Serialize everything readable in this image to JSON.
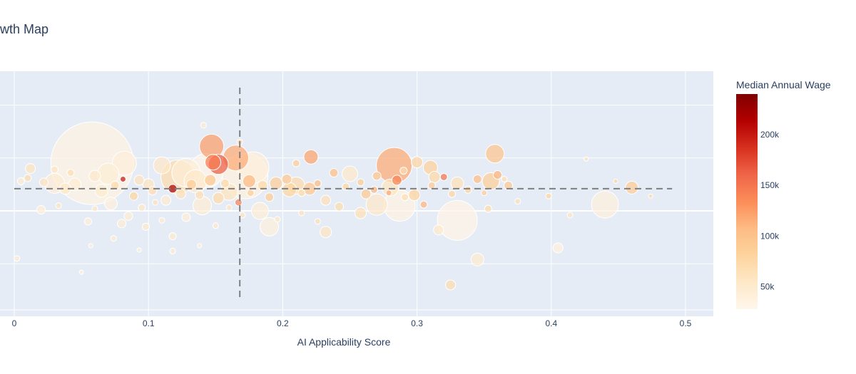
{
  "chart_data": {
    "type": "scatter",
    "title": "owth Map",
    "xlabel": "AI Applicability Score",
    "ylabel": "",
    "x_ticks": [
      "0",
      "0.1",
      "0.2",
      "0.3",
      "0.4",
      "0.5"
    ],
    "xlim": [
      -0.01,
      0.52
    ],
    "color_scale": {
      "title": "Median Annual Wage",
      "tick_labels": [
        "50k",
        "100k",
        "150k",
        "200k"
      ],
      "tick_values": [
        50000,
        100000,
        150000,
        200000
      ],
      "range": [
        28000,
        240000
      ],
      "colors": [
        "#fff7ec",
        "#fee8c8",
        "#fdd49e",
        "#fdbb84",
        "#fc8d59",
        "#ef6548",
        "#d7301f",
        "#b30000",
        "#7f0000"
      ]
    },
    "reference_lines": {
      "x_mean": 0.168,
      "y_mean": 2.1
    },
    "grid": true,
    "legend": "colorbar-right",
    "points": [
      {
        "x": 0.058,
        "y": 4.5,
        "size": 58,
        "wage": 36000
      },
      {
        "x": 0.143,
        "y": 3.8,
        "size": 24,
        "wage": 34000
      },
      {
        "x": 0.147,
        "y": 6.1,
        "size": 17,
        "wage": 125000
      },
      {
        "x": 0.165,
        "y": 5.0,
        "size": 18,
        "wage": 118000
      },
      {
        "x": 0.152,
        "y": 4.4,
        "size": 14,
        "wage": 165000
      },
      {
        "x": 0.148,
        "y": 4.6,
        "size": 11,
        "wage": 145000
      },
      {
        "x": 0.172,
        "y": 3.3,
        "size": 32,
        "wage": 38000
      },
      {
        "x": 0.178,
        "y": 4.1,
        "size": 22,
        "wage": 42000
      },
      {
        "x": 0.122,
        "y": 3.2,
        "size": 24,
        "wage": 72000
      },
      {
        "x": 0.128,
        "y": 3.6,
        "size": 20,
        "wage": 45000
      },
      {
        "x": 0.135,
        "y": 2.8,
        "size": 16,
        "wage": 52000
      },
      {
        "x": 0.283,
        "y": 4.3,
        "size": 25,
        "wage": 118000
      },
      {
        "x": 0.287,
        "y": 0.5,
        "size": 22,
        "wage": 36000
      },
      {
        "x": 0.33,
        "y": -0.9,
        "size": 28,
        "wage": 33000
      },
      {
        "x": 0.358,
        "y": 5.4,
        "size": 13,
        "wage": 98000
      },
      {
        "x": 0.221,
        "y": 5.1,
        "size": 10,
        "wage": 122000
      },
      {
        "x": 0.44,
        "y": 0.6,
        "size": 19,
        "wage": 40000
      },
      {
        "x": 0.355,
        "y": 2.8,
        "size": 12,
        "wage": 88000
      },
      {
        "x": 0.082,
        "y": 4.5,
        "size": 17,
        "wage": 42000
      },
      {
        "x": 0.07,
        "y": 3.5,
        "size": 15,
        "wage": 44000
      },
      {
        "x": 0.03,
        "y": 2.6,
        "size": 14,
        "wage": 47000
      },
      {
        "x": 0.11,
        "y": 4.3,
        "size": 12,
        "wage": 55000
      },
      {
        "x": 0.19,
        "y": -1.5,
        "size": 13,
        "wage": 40000
      },
      {
        "x": 0.31,
        "y": 4.1,
        "size": 10,
        "wage": 84000
      },
      {
        "x": 0.3,
        "y": 4.6,
        "size": 8,
        "wage": 78000
      },
      {
        "x": 0.46,
        "y": 2.2,
        "size": 9,
        "wage": 90000
      },
      {
        "x": 0.345,
        "y": -4.6,
        "size": 9,
        "wage": 50000
      },
      {
        "x": 0.405,
        "y": -3.5,
        "size": 7,
        "wage": 38000
      },
      {
        "x": 0.325,
        "y": -7.0,
        "size": 7,
        "wage": 70000
      },
      {
        "x": 0.25,
        "y": 3.5,
        "size": 11,
        "wage": 52000
      },
      {
        "x": 0.28,
        "y": 2.2,
        "size": 12,
        "wage": 60000
      },
      {
        "x": 0.27,
        "y": 0.6,
        "size": 15,
        "wage": 55000
      },
      {
        "x": 0.33,
        "y": 2.6,
        "size": 9,
        "wage": 65000
      },
      {
        "x": 0.21,
        "y": 2.4,
        "size": 12,
        "wage": 72000
      },
      {
        "x": 0.205,
        "y": 2.0,
        "size": 10,
        "wage": 80000
      },
      {
        "x": 0.16,
        "y": 1.8,
        "size": 12,
        "wage": 60000
      },
      {
        "x": 0.14,
        "y": 0.5,
        "size": 13,
        "wage": 46000
      },
      {
        "x": 0.183,
        "y": 0.0,
        "size": 12,
        "wage": 44000
      },
      {
        "x": 0.232,
        "y": -2.0,
        "size": 8,
        "wage": 58000
      },
      {
        "x": 0.258,
        "y": -0.2,
        "size": 8,
        "wage": 65000
      },
      {
        "x": 0.316,
        "y": -1.8,
        "size": 7,
        "wage": 52000
      },
      {
        "x": 0.012,
        "y": 4.0,
        "size": 7,
        "wage": 60000
      },
      {
        "x": 0.045,
        "y": 2.5,
        "size": 9,
        "wage": 46000
      },
      {
        "x": 0.22,
        "y": 2.1,
        "size": 9,
        "wage": 95000
      },
      {
        "x": 0.285,
        "y": 2.9,
        "size": 7,
        "wage": 140000
      },
      {
        "x": 0.298,
        "y": 1.5,
        "size": 8,
        "wage": 82000
      },
      {
        "x": 0.313,
        "y": 3.2,
        "size": 8,
        "wage": 76000
      },
      {
        "x": 0.368,
        "y": 2.4,
        "size": 6,
        "wage": 94000
      },
      {
        "x": 0.345,
        "y": 3.0,
        "size": 6,
        "wage": 105000
      },
      {
        "x": 0.32,
        "y": 3.2,
        "size": 5,
        "wage": 150000
      },
      {
        "x": 0.195,
        "y": 2.6,
        "size": 9,
        "wage": 86000
      },
      {
        "x": 0.175,
        "y": 2.8,
        "size": 9,
        "wage": 110000
      },
      {
        "x": 0.185,
        "y": 2.4,
        "size": 7,
        "wage": 75000
      },
      {
        "x": 0.1,
        "y": 2.5,
        "size": 8,
        "wage": 58000
      },
      {
        "x": 0.093,
        "y": 2.9,
        "size": 7,
        "wage": 62000
      },
      {
        "x": 0.081,
        "y": 3.0,
        "size": 4,
        "wage": 200000
      },
      {
        "x": 0.118,
        "y": 2.1,
        "size": 6,
        "wage": 220000
      },
      {
        "x": 0.065,
        "y": 1.9,
        "size": 9,
        "wage": 50000
      },
      {
        "x": 0.038,
        "y": 2.1,
        "size": 8,
        "wage": 54000
      },
      {
        "x": 0.022,
        "y": 2.7,
        "size": 6,
        "wage": 62000
      },
      {
        "x": 0.005,
        "y": 2.8,
        "size": 5,
        "wage": 48000
      },
      {
        "x": 0.072,
        "y": 0.7,
        "size": 9,
        "wage": 40000
      },
      {
        "x": 0.085,
        "y": -0.5,
        "size": 6,
        "wage": 46000
      },
      {
        "x": 0.055,
        "y": -1.0,
        "size": 5,
        "wage": 44000
      },
      {
        "x": 0.02,
        "y": 0.1,
        "size": 6,
        "wage": 43000
      },
      {
        "x": 0.113,
        "y": 1.0,
        "size": 7,
        "wage": 48000
      },
      {
        "x": 0.128,
        "y": -0.6,
        "size": 6,
        "wage": 44000
      },
      {
        "x": 0.232,
        "y": 1.0,
        "size": 7,
        "wage": 64000
      },
      {
        "x": 0.262,
        "y": 1.6,
        "size": 7,
        "wage": 92000
      },
      {
        "x": 0.242,
        "y": 0.4,
        "size": 6,
        "wage": 70000
      },
      {
        "x": 0.305,
        "y": 0.6,
        "size": 5,
        "wage": 110000
      },
      {
        "x": 0.353,
        "y": 0.2,
        "size": 5,
        "wage": 72000
      },
      {
        "x": 0.375,
        "y": 0.9,
        "size": 4,
        "wage": 66000
      },
      {
        "x": 0.414,
        "y": -0.4,
        "size": 4,
        "wage": 58000
      },
      {
        "x": 0.398,
        "y": 1.4,
        "size": 4,
        "wage": 80000
      },
      {
        "x": 0.152,
        "y": 1.2,
        "size": 8,
        "wage": 74000
      },
      {
        "x": 0.167,
        "y": 0.8,
        "size": 5,
        "wage": 140000
      },
      {
        "x": 0.098,
        "y": -1.5,
        "size": 5,
        "wage": 52000
      },
      {
        "x": 0.118,
        "y": -2.4,
        "size": 5,
        "wage": 50000
      },
      {
        "x": 0.08,
        "y": -1.2,
        "size": 6,
        "wage": 46000
      },
      {
        "x": 0.002,
        "y": -4.5,
        "size": 4,
        "wage": 45000
      },
      {
        "x": 0.05,
        "y": -5.8,
        "size": 3,
        "wage": 40000
      },
      {
        "x": 0.141,
        "y": 8.1,
        "size": 4,
        "wage": 50000
      },
      {
        "x": 0.168,
        "y": 6.5,
        "size": 4,
        "wage": 70000
      },
      {
        "x": 0.21,
        "y": 4.5,
        "size": 5,
        "wage": 86000
      },
      {
        "x": 0.203,
        "y": 3.0,
        "size": 7,
        "wage": 95000
      },
      {
        "x": 0.19,
        "y": 1.3,
        "size": 6,
        "wage": 90000
      },
      {
        "x": 0.27,
        "y": 3.3,
        "size": 6,
        "wage": 98000
      },
      {
        "x": 0.238,
        "y": 3.6,
        "size": 6,
        "wage": 102000
      },
      {
        "x": 0.258,
        "y": 2.7,
        "size": 5,
        "wage": 88000
      },
      {
        "x": 0.29,
        "y": 3.8,
        "size": 5,
        "wage": 70000
      },
      {
        "x": 0.338,
        "y": 2.0,
        "size": 5,
        "wage": 84000
      },
      {
        "x": 0.36,
        "y": 3.4,
        "size": 6,
        "wage": 112000
      },
      {
        "x": 0.365,
        "y": 3.0,
        "size": 4,
        "wage": 68000
      },
      {
        "x": 0.06,
        "y": 3.3,
        "size": 8,
        "wage": 52000
      },
      {
        "x": 0.042,
        "y": 3.6,
        "size": 5,
        "wage": 66000
      },
      {
        "x": 0.03,
        "y": 3.9,
        "size": 5,
        "wage": 58000
      },
      {
        "x": 0.01,
        "y": 3.1,
        "size": 5,
        "wage": 70000
      },
      {
        "x": 0.075,
        "y": 2.4,
        "size": 6,
        "wage": 74000
      },
      {
        "x": 0.089,
        "y": 1.4,
        "size": 6,
        "wage": 80000
      },
      {
        "x": 0.103,
        "y": 1.9,
        "size": 6,
        "wage": 68000
      },
      {
        "x": 0.132,
        "y": 2.5,
        "size": 7,
        "wage": 90000
      },
      {
        "x": 0.146,
        "y": 2.9,
        "size": 8,
        "wage": 96000
      },
      {
        "x": 0.157,
        "y": 2.6,
        "size": 6,
        "wage": 76000
      },
      {
        "x": 0.124,
        "y": 1.6,
        "size": 7,
        "wage": 64000
      },
      {
        "x": 0.138,
        "y": 1.5,
        "size": 6,
        "wage": 68000
      },
      {
        "x": 0.176,
        "y": 1.7,
        "size": 5,
        "wage": 86000
      },
      {
        "x": 0.214,
        "y": 1.7,
        "size": 5,
        "wage": 74000
      },
      {
        "x": 0.226,
        "y": 2.6,
        "size": 5,
        "wage": 105000
      },
      {
        "x": 0.247,
        "y": 2.3,
        "size": 5,
        "wage": 80000
      },
      {
        "x": 0.268,
        "y": 2.0,
        "size": 5,
        "wage": 110000
      },
      {
        "x": 0.311,
        "y": 2.4,
        "size": 5,
        "wage": 92000
      },
      {
        "x": 0.326,
        "y": 1.6,
        "size": 5,
        "wage": 78000
      },
      {
        "x": 0.35,
        "y": 1.7,
        "size": 4,
        "wage": 86000
      },
      {
        "x": 0.291,
        "y": 1.3,
        "size": 5,
        "wage": 66000
      },
      {
        "x": 0.279,
        "y": 1.7,
        "size": 4,
        "wage": 120000
      },
      {
        "x": 0.095,
        "y": 0.3,
        "size": 5,
        "wage": 56000
      },
      {
        "x": 0.105,
        "y": 0.8,
        "size": 4,
        "wage": 62000
      },
      {
        "x": 0.06,
        "y": 0.2,
        "size": 4,
        "wage": 54000
      },
      {
        "x": 0.033,
        "y": 0.5,
        "size": 4,
        "wage": 60000
      },
      {
        "x": 0.17,
        "y": -0.4,
        "size": 4,
        "wage": 60000
      },
      {
        "x": 0.196,
        "y": -0.8,
        "size": 4,
        "wage": 56000
      },
      {
        "x": 0.214,
        "y": -0.2,
        "size": 4,
        "wage": 62000
      },
      {
        "x": 0.226,
        "y": -1.0,
        "size": 4,
        "wage": 66000
      },
      {
        "x": 0.15,
        "y": -1.4,
        "size": 4,
        "wage": 52000
      },
      {
        "x": 0.16,
        "y": 0.3,
        "size": 4,
        "wage": 58000
      },
      {
        "x": 0.11,
        "y": -0.9,
        "size": 4,
        "wage": 48000
      },
      {
        "x": 0.138,
        "y": -3.3,
        "size": 3,
        "wage": 46000
      },
      {
        "x": 0.118,
        "y": -3.8,
        "size": 4,
        "wage": 50000
      },
      {
        "x": 0.093,
        "y": -3.7,
        "size": 3,
        "wage": 44000
      },
      {
        "x": 0.074,
        "y": -2.6,
        "size": 4,
        "wage": 48000
      },
      {
        "x": 0.057,
        "y": -3.3,
        "size": 3,
        "wage": 46000
      },
      {
        "x": 0.474,
        "y": 1.4,
        "size": 3,
        "wage": 74000
      },
      {
        "x": 0.426,
        "y": 4.9,
        "size": 3,
        "wage": 62000
      },
      {
        "x": 0.448,
        "y": 2.8,
        "size": 3,
        "wage": 80000
      }
    ]
  }
}
